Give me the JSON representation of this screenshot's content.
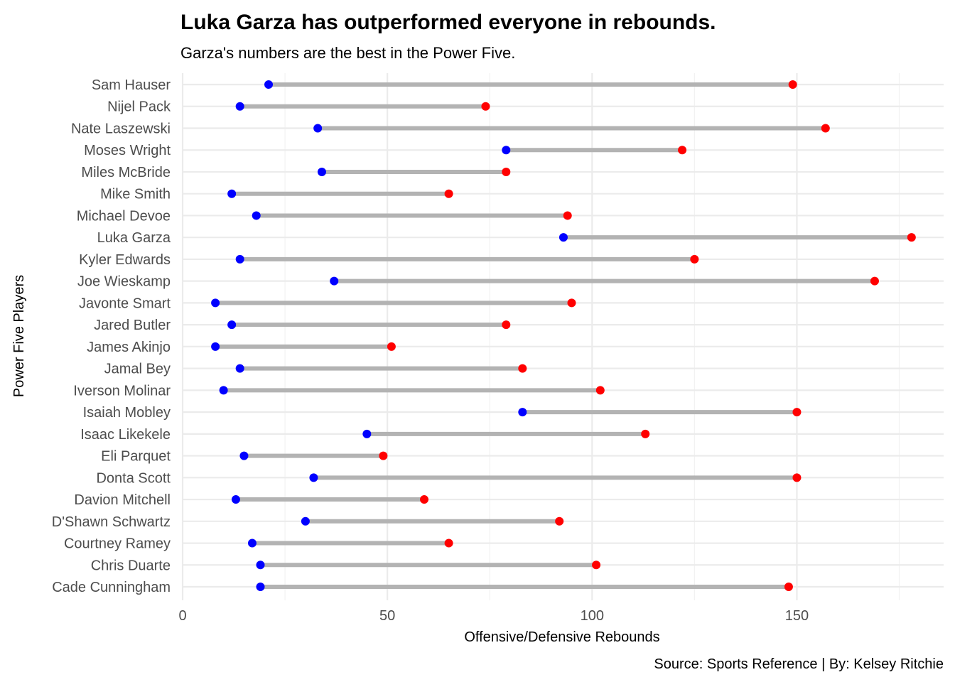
{
  "chart_data": {
    "type": "dumbbell",
    "title": "Luka Garza has outperformed everyone in rebounds.",
    "subtitle": "Garza's numbers are the best in the Power Five.",
    "xlabel": "Offensive/Defensive Rebounds",
    "ylabel": "Power Five Players",
    "caption": "Source: Sports Reference | By: Kelsey Ritchie",
    "xlim": [
      0,
      180
    ],
    "xticks": [
      0,
      50,
      100,
      150
    ],
    "grid": true,
    "colors": {
      "offensive": "#0000ff",
      "defensive": "#ff0000",
      "segment": "#b3b3b3"
    },
    "players": [
      {
        "name": "Sam Hauser",
        "offensive": 21,
        "defensive": 149
      },
      {
        "name": "Nijel Pack",
        "offensive": 14,
        "defensive": 74
      },
      {
        "name": "Nate Laszewski",
        "offensive": 33,
        "defensive": 157
      },
      {
        "name": "Moses Wright",
        "offensive": 79,
        "defensive": 122
      },
      {
        "name": "Miles McBride",
        "offensive": 34,
        "defensive": 79
      },
      {
        "name": "Mike Smith",
        "offensive": 12,
        "defensive": 65
      },
      {
        "name": "Michael Devoe",
        "offensive": 18,
        "defensive": 94
      },
      {
        "name": "Luka Garza",
        "offensive": 93,
        "defensive": 178
      },
      {
        "name": "Kyler Edwards",
        "offensive": 14,
        "defensive": 125
      },
      {
        "name": "Joe Wieskamp",
        "offensive": 37,
        "defensive": 169
      },
      {
        "name": "Javonte Smart",
        "offensive": 8,
        "defensive": 95
      },
      {
        "name": "Jared Butler",
        "offensive": 12,
        "defensive": 79
      },
      {
        "name": "James Akinjo",
        "offensive": 8,
        "defensive": 51
      },
      {
        "name": "Jamal Bey",
        "offensive": 14,
        "defensive": 83
      },
      {
        "name": "Iverson Molinar",
        "offensive": 10,
        "defensive": 102
      },
      {
        "name": "Isaiah Mobley",
        "offensive": 83,
        "defensive": 150
      },
      {
        "name": "Isaac Likekele",
        "offensive": 45,
        "defensive": 113
      },
      {
        "name": "Eli Parquet",
        "offensive": 15,
        "defensive": 49
      },
      {
        "name": "Donta Scott",
        "offensive": 32,
        "defensive": 150
      },
      {
        "name": "Davion Mitchell",
        "offensive": 13,
        "defensive": 59
      },
      {
        "name": "D'Shawn Schwartz",
        "offensive": 30,
        "defensive": 92
      },
      {
        "name": "Courtney Ramey",
        "offensive": 17,
        "defensive": 65
      },
      {
        "name": "Chris Duarte",
        "offensive": 19,
        "defensive": 101
      },
      {
        "name": "Cade Cunningham",
        "offensive": 19,
        "defensive": 148
      }
    ]
  }
}
